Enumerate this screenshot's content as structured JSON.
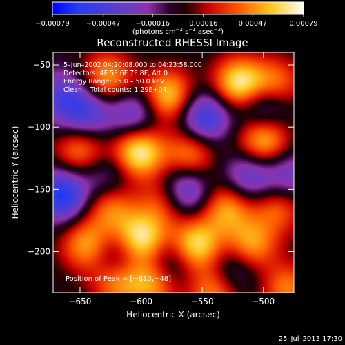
{
  "chart_data": {
    "type": "heatmap",
    "title": "Reconstructed RHESSI Image",
    "xlabel": "Heliocentric X (arcsec)",
    "ylabel": "Heliocentric Y (arcsec)",
    "xlim": [
      -672,
      -475
    ],
    "ylim": [
      -233,
      -40
    ],
    "xticks": [
      -650,
      -600,
      -550,
      -500
    ],
    "yticks": [
      -50,
      -100,
      -150,
      -200
    ],
    "colorbar": {
      "ticks": [
        -0.00079,
        -0.00047,
        -0.00016,
        0.00016,
        0.00047,
        0.00079
      ],
      "tick_labels": [
        "−0.00079",
        "−0.00047",
        "−0.00016",
        "0.00016",
        "0.00047",
        "0.00079"
      ],
      "unit_label_parts": [
        "(photons cm",
        "−2",
        " s",
        "−1",
        " asec",
        "−2",
        ")"
      ],
      "range": [
        -0.00079,
        0.00079
      ]
    },
    "info_lines": [
      "5–Jun–2002 04:20:08.000 to 04:23:58.000",
      "Detectors: 4F 5F 6F 7F 8F, Att 0",
      "Energy Range: 25.0 – 50.0 keV",
      "Clean    Total counts: 1.29E+04"
    ],
    "peak_label": "Position of Peak = [−610,−48]",
    "peak": [
      -610,
      -48
    ],
    "blobs": [
      {
        "x": -628,
        "y": -60,
        "v": 0.65
      },
      {
        "x": -578,
        "y": -75,
        "v": 0.8
      },
      {
        "x": -520,
        "y": -65,
        "v": 0.9
      },
      {
        "x": -490,
        "y": -65,
        "v": 0.55
      },
      {
        "x": -560,
        "y": -122,
        "v": 0.6
      },
      {
        "x": -602,
        "y": -120,
        "v": 0.95
      },
      {
        "x": -650,
        "y": -118,
        "v": 0.6
      },
      {
        "x": -500,
        "y": -110,
        "v": 0.8
      },
      {
        "x": -625,
        "y": -165,
        "v": 0.55
      },
      {
        "x": -580,
        "y": -160,
        "v": 0.55
      },
      {
        "x": -530,
        "y": -165,
        "v": 0.65
      },
      {
        "x": -488,
        "y": -165,
        "v": 0.5
      },
      {
        "x": -600,
        "y": -190,
        "v": 0.9
      },
      {
        "x": -645,
        "y": -195,
        "v": 0.65
      },
      {
        "x": -555,
        "y": -195,
        "v": 0.85
      },
      {
        "x": -510,
        "y": -195,
        "v": 0.65
      },
      {
        "x": -620,
        "y": -225,
        "v": 0.6
      },
      {
        "x": -590,
        "y": -225,
        "v": 0.7
      },
      {
        "x": -540,
        "y": -232,
        "v": 0.6
      },
      {
        "x": -480,
        "y": -230,
        "v": 0.55
      },
      {
        "x": -665,
        "y": -75,
        "v": -0.5
      },
      {
        "x": -645,
        "y": -90,
        "v": -0.6
      },
      {
        "x": -605,
        "y": -90,
        "v": -0.55
      },
      {
        "x": -548,
        "y": -92,
        "v": -0.75
      },
      {
        "x": -500,
        "y": -85,
        "v": -0.55
      },
      {
        "x": -665,
        "y": -155,
        "v": -0.85
      },
      {
        "x": -628,
        "y": -140,
        "v": -0.35
      },
      {
        "x": -565,
        "y": -152,
        "v": -0.75
      },
      {
        "x": -512,
        "y": -140,
        "v": -0.55
      },
      {
        "x": -478,
        "y": -140,
        "v": -0.45
      },
      {
        "x": -620,
        "y": -205,
        "v": -0.4
      },
      {
        "x": -578,
        "y": -210,
        "v": -0.45
      },
      {
        "x": -525,
        "y": -215,
        "v": -0.4
      }
    ]
  },
  "footer": {
    "timestamp": "25–Jul–2013 17:30"
  }
}
